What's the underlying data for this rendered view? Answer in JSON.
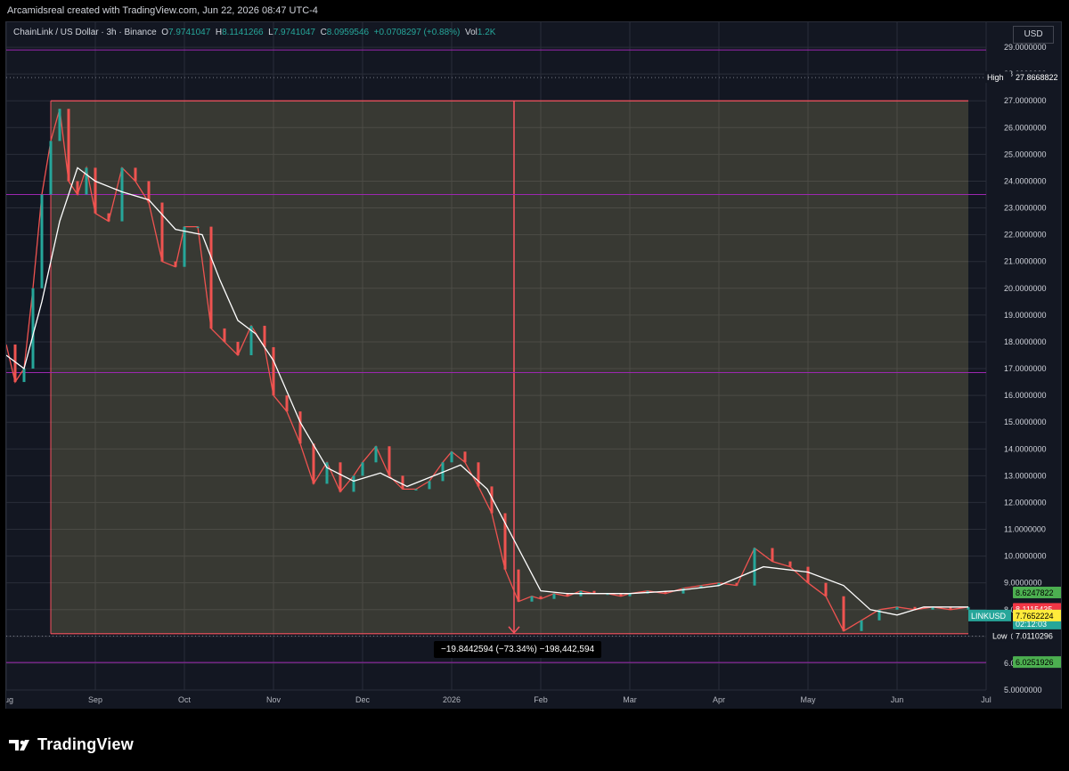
{
  "header": {
    "attribution": "Arcamidsreal created with TradingView.com, Jun 22, 2026 08:47 UTC-4"
  },
  "legend": {
    "symbol": "ChainLink / US Dollar · 3h · Binance",
    "o_label": "O",
    "o_value": "7.9741047",
    "h_label": "H",
    "h_value": "8.1141266",
    "l_label": "L",
    "l_value": "7.9741047",
    "c_label": "C",
    "c_value": "8.0959546",
    "change": "+0.0708297 (+0.88%)",
    "vol_label": "Vol",
    "vol_value": "1.2K"
  },
  "currency_button": "USD",
  "measure_label": "−19.8442594 (−73.34%) −198,442,594",
  "footer": {
    "brand": "TradingView"
  },
  "colors": {
    "background": "#131722",
    "up": "#26a69a",
    "down": "#ef5350",
    "ma": "#ffffff",
    "ma_red": "#f23645",
    "range_box": "rgba(255,235,140,0.16)",
    "range_line": "#f7525f",
    "level_line": "#9c27b0"
  },
  "chart_data": {
    "type": "line",
    "symbol": "LINKUSD",
    "price_axis": {
      "min": 5,
      "max": 29,
      "step": 1,
      "decimals": 7
    },
    "x_labels": [
      "Aug",
      "Sep",
      "Oct",
      "Nov",
      "Dec",
      "2026",
      "Feb",
      "Mar",
      "Apr",
      "May",
      "Jun",
      "Jul"
    ],
    "price_tags": [
      {
        "label": "High",
        "value": "27.8668822"
      },
      {
        "label": "",
        "value": "8.6247822"
      },
      {
        "label": "",
        "value": "8.1115435"
      },
      {
        "label": "LINKUSD",
        "value": "8.0959546",
        "sub": "02:12:03"
      },
      {
        "label": "",
        "value": "7.7652224"
      },
      {
        "label": "Low",
        "value": "7.0110296"
      },
      {
        "label": "",
        "value": "6.0251926"
      }
    ],
    "horizontal_levels": [
      28.9,
      23.5,
      16.85,
      6.0251926
    ],
    "dotted_levels": [
      27.8668822,
      7.0110296
    ],
    "range": {
      "top": 27.0,
      "bottom": 7.1,
      "start": 0.5,
      "end": 10.8
    },
    "arrow_x": 5.7,
    "series": [
      {
        "name": "LINKUSD",
        "x": [
          0,
          0.1,
          0.2,
          0.3,
          0.4,
          0.5,
          0.6,
          0.7,
          0.8,
          0.9,
          1.0,
          1.15,
          1.3,
          1.45,
          1.6,
          1.75,
          1.9,
          2.0,
          2.15,
          2.3,
          2.45,
          2.6,
          2.75,
          2.9,
          3.0,
          3.15,
          3.3,
          3.45,
          3.6,
          3.75,
          3.9,
          4.0,
          4.15,
          4.3,
          4.45,
          4.6,
          4.75,
          4.9,
          5.0,
          5.15,
          5.3,
          5.45,
          5.6,
          5.75,
          5.9,
          6.0,
          6.15,
          6.3,
          6.45,
          6.6,
          6.75,
          6.9,
          7.0,
          7.2,
          7.4,
          7.6,
          7.8,
          8.0,
          8.2,
          8.4,
          8.6,
          8.8,
          9.0,
          9.2,
          9.4,
          9.6,
          9.8,
          10.0,
          10.2,
          10.4,
          10.6,
          10.8
        ],
        "values": [
          17.9,
          16.5,
          17.0,
          20.0,
          23.5,
          25.5,
          26.7,
          24.0,
          23.5,
          24.5,
          22.8,
          22.5,
          24.5,
          24.0,
          23.2,
          21.0,
          20.8,
          22.3,
          22.3,
          18.5,
          18.0,
          17.5,
          18.6,
          17.8,
          16.0,
          15.4,
          14.2,
          12.7,
          13.5,
          12.4,
          13.0,
          13.5,
          14.1,
          13.0,
          12.5,
          12.5,
          12.8,
          13.5,
          13.9,
          13.5,
          12.6,
          11.6,
          9.5,
          8.3,
          8.5,
          8.4,
          8.6,
          8.5,
          8.7,
          8.6,
          8.6,
          8.5,
          8.6,
          8.7,
          8.6,
          8.8,
          8.9,
          9.0,
          8.9,
          10.3,
          9.8,
          9.6,
          9.0,
          8.5,
          7.2,
          7.6,
          8.0,
          8.1,
          8.0,
          8.1,
          8.0,
          8.1
        ]
      },
      {
        "name": "MA",
        "x": [
          0,
          0.2,
          0.4,
          0.6,
          0.8,
          1.0,
          1.3,
          1.6,
          1.9,
          2.2,
          2.4,
          2.6,
          2.8,
          3.0,
          3.3,
          3.6,
          3.9,
          4.2,
          4.5,
          4.8,
          5.1,
          5.4,
          5.7,
          6.0,
          6.3,
          6.6,
          7.0,
          7.5,
          8.0,
          8.5,
          9.0,
          9.4,
          9.7,
          10.0,
          10.3,
          10.6,
          10.8
        ],
        "values": [
          17.5,
          17.0,
          19.5,
          22.5,
          24.5,
          24.0,
          23.6,
          23.3,
          22.2,
          22.0,
          20.3,
          18.8,
          18.3,
          17.3,
          15.0,
          13.3,
          12.8,
          13.1,
          12.6,
          13.0,
          13.4,
          12.5,
          10.6,
          8.7,
          8.6,
          8.6,
          8.6,
          8.7,
          8.9,
          9.6,
          9.4,
          8.9,
          8.0,
          7.8,
          8.1,
          8.1,
          8.1
        ]
      }
    ]
  }
}
